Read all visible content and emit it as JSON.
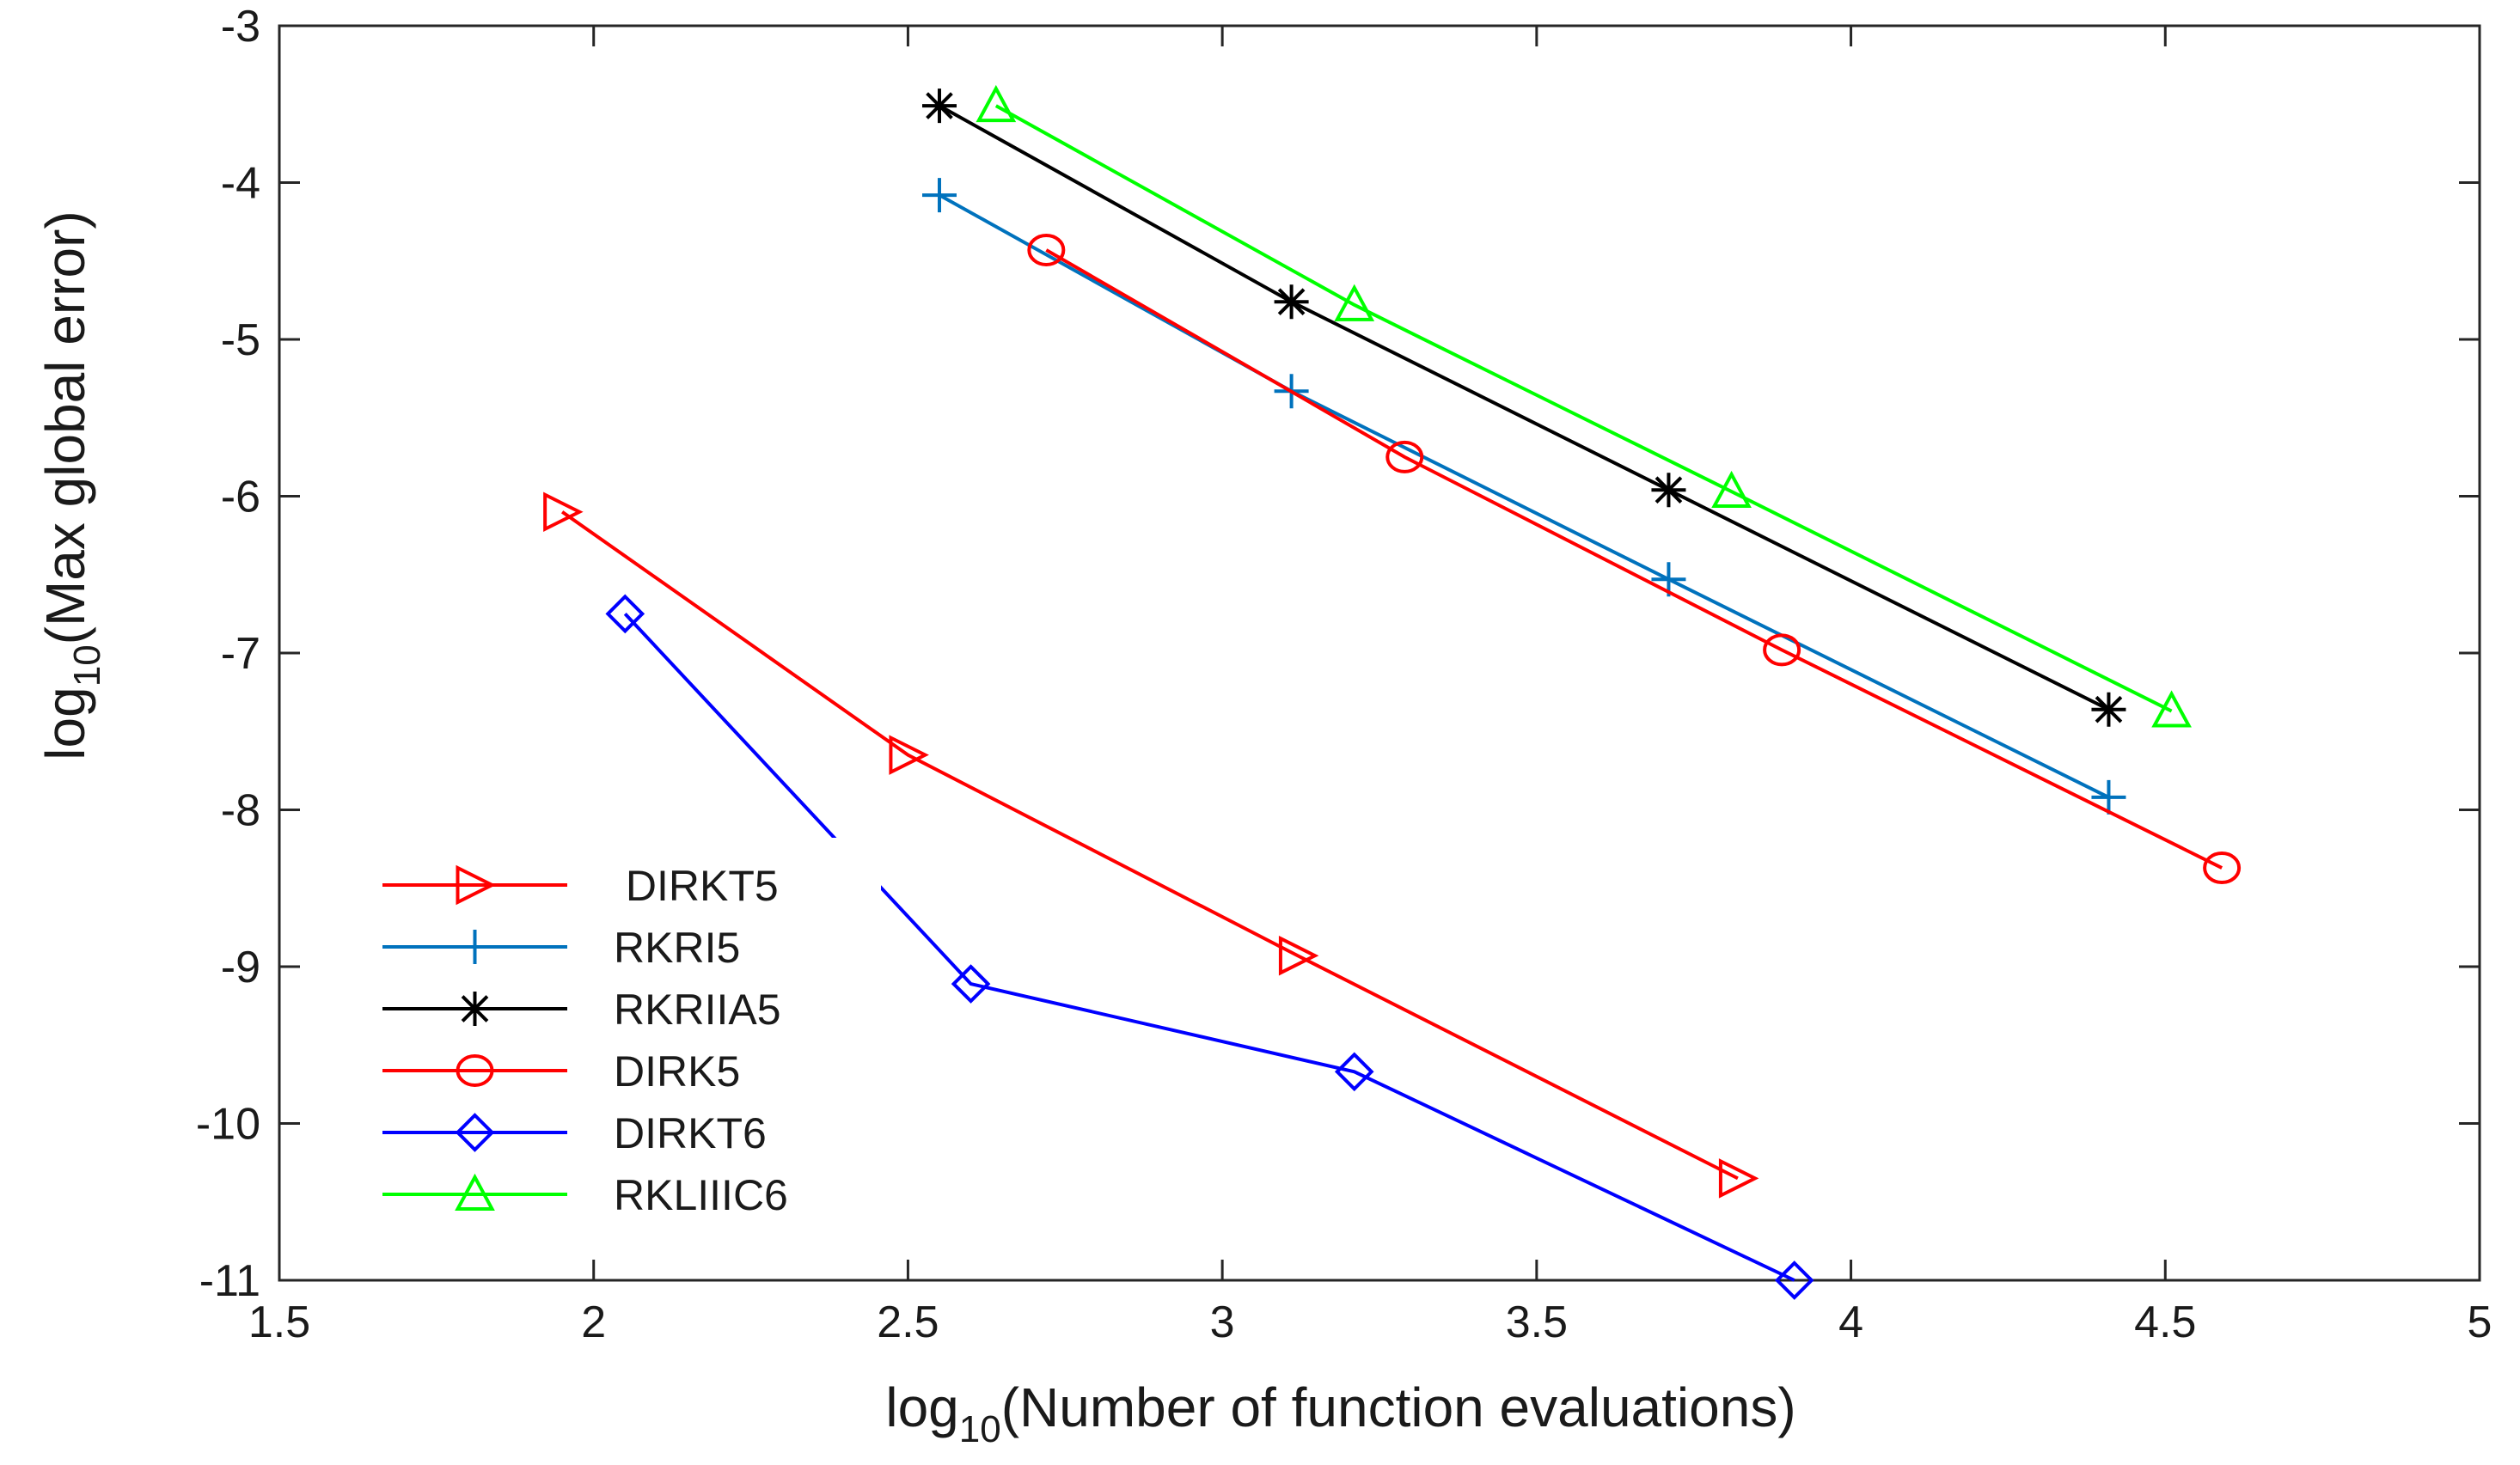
{
  "chart_data": {
    "type": "line",
    "title": "",
    "xlabel": {
      "prefix": "log",
      "sub": "10",
      "suffix": "(Number of function evaluations)"
    },
    "ylabel": {
      "prefix": "log",
      "sub": "10",
      "suffix": "(Max global error)"
    },
    "xlim": [
      1.5,
      5
    ],
    "ylim": [
      -11,
      -3
    ],
    "xticks": [
      1.5,
      2,
      2.5,
      3,
      3.5,
      4,
      4.5,
      5
    ],
    "xtick_labels": [
      "1.5",
      "2",
      "2.5",
      "3",
      "3.5",
      "4",
      "4.5",
      "5"
    ],
    "yticks": [
      -3,
      -4,
      -5,
      -6,
      -7,
      -8,
      -9,
      -10,
      -11
    ],
    "ytick_labels": [
      "-3",
      "-4",
      "-5",
      "-6",
      "-7",
      "-8",
      "-9",
      "-10",
      "-11"
    ],
    "grid": false,
    "legend_position": "bottom-left",
    "series": [
      {
        "name": " DIRKT5",
        "color": "#ff0000",
        "marker": "triangle-right",
        "x": [
          1.95,
          2.5,
          3.12,
          3.82
        ],
        "y": [
          -6.1,
          -7.65,
          -8.93,
          -10.35
        ]
      },
      {
        "name": "RKRI5",
        "color": "#0072bd",
        "marker": "plus",
        "x": [
          2.55,
          3.11,
          3.71,
          4.41
        ],
        "y": [
          -4.08,
          -5.33,
          -6.53,
          -7.92
        ]
      },
      {
        "name": "RKRIIA5",
        "color": "#000000",
        "marker": "asterisk",
        "x": [
          2.55,
          3.11,
          3.71,
          4.41
        ],
        "y": [
          -3.51,
          -4.76,
          -5.96,
          -7.36
        ]
      },
      {
        "name": "DIRK5",
        "color": "#ff0000",
        "marker": "circle",
        "x": [
          2.72,
          3.29,
          3.89,
          4.59
        ],
        "y": [
          -4.43,
          -5.75,
          -6.98,
          -8.37
        ]
      },
      {
        "name": "DIRKT6",
        "color": "#0000ff",
        "marker": "diamond",
        "x": [
          2.05,
          2.6,
          3.21,
          3.91
        ],
        "y": [
          -6.75,
          -9.11,
          -9.67,
          -11.0
        ]
      },
      {
        "name": "RKLIIIC6",
        "color": "#00ff00",
        "marker": "triangle-up",
        "x": [
          2.64,
          3.21,
          3.81,
          4.51
        ],
        "y": [
          -3.51,
          -4.78,
          -5.97,
          -7.37
        ]
      }
    ]
  }
}
